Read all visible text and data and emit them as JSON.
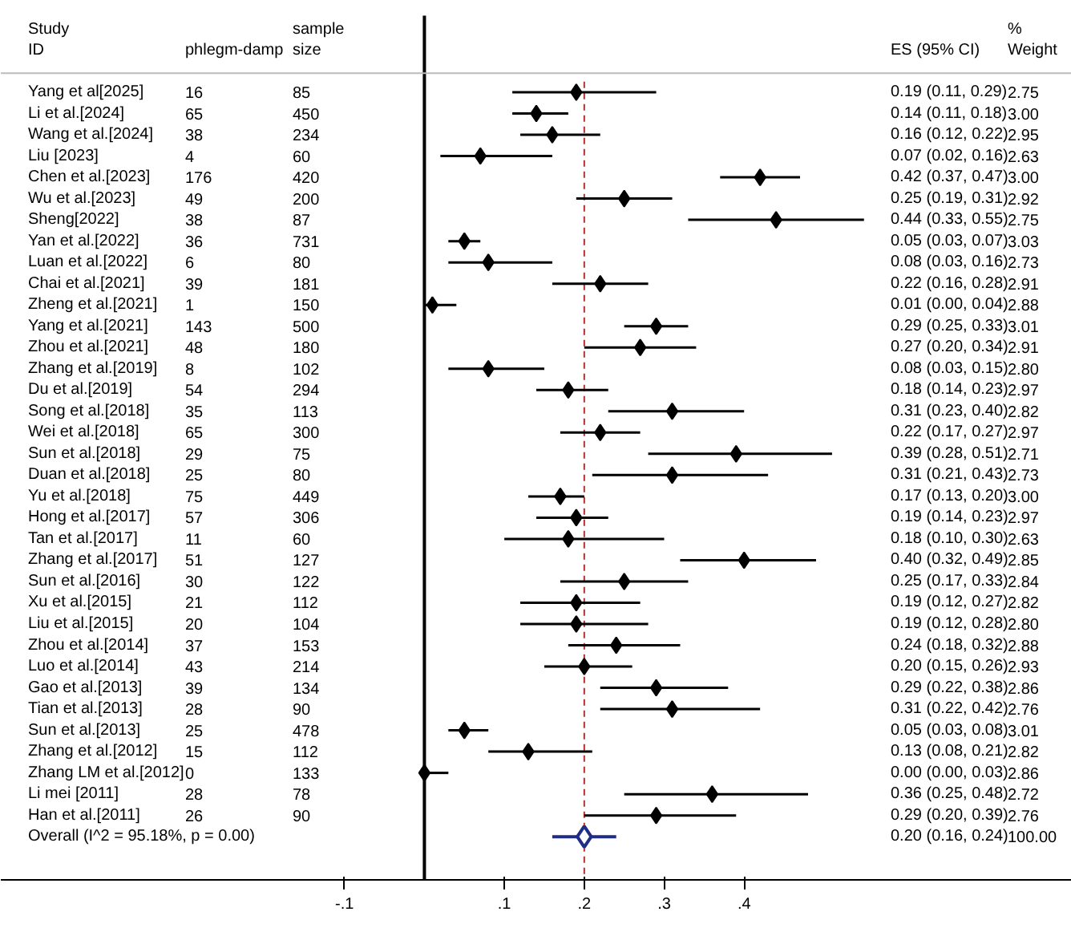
{
  "chart_data": {
    "type": "scatter",
    "orientation": "horizontal",
    "categories": [
      "Yang et al[2025]",
      "Li et al.[2024]",
      "Wang et al.[2024]",
      "Liu [2023]",
      "Chen et al.[2023]",
      "Wu et al.[2023]",
      "Sheng[2022]",
      "Yan et al.[2022]",
      "Luan et al.[2022]",
      "Chai et al.[2021]",
      "Zheng et al.[2021]",
      "Yang et al.[2021]",
      "Zhou et al.[2021]",
      "Zhang et al.[2019]",
      "Du et al.[2019]",
      "Song et al.[2018]",
      "Wei et al.[2018]",
      "Sun et al.[2018]",
      "Duan et al.[2018]",
      "Yu et al.[2018]",
      "Hong et al.[2017]",
      "Tan et al.[2017]",
      "Zhang et al.[2017]",
      "Sun et al.[2016]",
      "Xu et al.[2015]",
      "Liu et al.[2015]",
      "Zhou et al.[2014]",
      "Luo et al.[2014]",
      "Gao et al.[2013]",
      "Tian et al.[2013]",
      "Sun et al.[2013]",
      "Zhang et al.[2012]",
      "Zhang LM et al.[2012]",
      "Li mei [2011]",
      "Han et al.[2011]",
      "Overall  (I^2 = 95.18%, p = 0.00)"
    ],
    "xlim": [
      -0.53,
      0.81
    ],
    "xticks": [
      {
        "value": -0.1,
        "label": "-.1"
      },
      {
        "value": 0.1,
        "label": ".1"
      },
      {
        "value": 0.2,
        "label": ".2"
      },
      {
        "value": 0.3,
        "label": ".3"
      },
      {
        "value": 0.4,
        "label": ".4"
      }
    ],
    "tick_labels": "x",
    "ref_lines": [
      {
        "axis": "x",
        "value": 0,
        "color": "#000000",
        "line_style": "solid"
      },
      {
        "axis": "x",
        "value": 0.2,
        "color": "#b03030",
        "line_style": "dashed"
      }
    ],
    "series": [
      {
        "color": "#000000",
        "marker": "diamond",
        "values": [
          0.19,
          0.14,
          0.16,
          0.07,
          0.42,
          0.25,
          0.44,
          0.05,
          0.08,
          0.22,
          0.01,
          0.29,
          0.27,
          0.08,
          0.18,
          0.31,
          0.22,
          0.39,
          0.31,
          0.17,
          0.19,
          0.18,
          0.4,
          0.25,
          0.19,
          0.19,
          0.24,
          0.2,
          0.29,
          0.31,
          0.05,
          0.13,
          0.0,
          0.36,
          0.29,
          null
        ],
        "errors": [
          [
            0.11,
            0.29
          ],
          [
            0.11,
            0.18
          ],
          [
            0.12,
            0.22
          ],
          [
            0.02,
            0.16
          ],
          [
            0.37,
            0.47
          ],
          [
            0.19,
            0.31
          ],
          [
            0.33,
            0.55
          ],
          [
            0.03,
            0.07
          ],
          [
            0.03,
            0.16
          ],
          [
            0.16,
            0.28
          ],
          [
            0.0,
            0.04
          ],
          [
            0.25,
            0.33
          ],
          [
            0.2,
            0.34
          ],
          [
            0.03,
            0.15
          ],
          [
            0.14,
            0.23
          ],
          [
            0.23,
            0.4
          ],
          [
            0.17,
            0.27
          ],
          [
            0.28,
            0.51
          ],
          [
            0.21,
            0.43
          ],
          [
            0.13,
            0.2
          ],
          [
            0.14,
            0.23
          ],
          [
            0.1,
            0.3
          ],
          [
            0.32,
            0.49
          ],
          [
            0.17,
            0.33
          ],
          [
            0.12,
            0.27
          ],
          [
            0.12,
            0.28
          ],
          [
            0.18,
            0.32
          ],
          [
            0.15,
            0.26
          ],
          [
            0.22,
            0.38
          ],
          [
            0.22,
            0.42
          ],
          [
            0.03,
            0.08
          ],
          [
            0.08,
            0.21
          ],
          [
            0.0,
            0.03
          ],
          [
            0.25,
            0.48
          ],
          [
            0.2,
            0.39
          ],
          null
        ]
      },
      {
        "color": "#1f2d86",
        "marker": "diamond",
        "values": [
          null,
          null,
          null,
          null,
          null,
          null,
          null,
          null,
          null,
          null,
          null,
          null,
          null,
          null,
          null,
          null,
          null,
          null,
          null,
          null,
          null,
          null,
          null,
          null,
          null,
          null,
          null,
          null,
          null,
          null,
          null,
          null,
          null,
          null,
          null,
          0.2
        ],
        "errors": [
          null,
          null,
          null,
          null,
          null,
          null,
          null,
          null,
          null,
          null,
          null,
          null,
          null,
          null,
          null,
          null,
          null,
          null,
          null,
          null,
          null,
          null,
          null,
          null,
          null,
          null,
          null,
          null,
          null,
          null,
          null,
          null,
          null,
          null,
          null,
          [
            0.16,
            0.24
          ]
        ]
      }
    ],
    "annotations": [
      "Study",
      "ID",
      "phlegm-damp",
      "sample",
      "size",
      "ES (95% CI)",
      "%",
      "Weight",
      "16",
      "85",
      "0.19 (0.11, 0.29)",
      "2.75",
      "65",
      "450",
      "0.14 (0.11, 0.18)",
      "3.00",
      "38",
      "234",
      "0.16 (0.12, 0.22)",
      "2.95",
      "4",
      "60",
      "0.07 (0.02, 0.16)",
      "2.63",
      "176",
      "420",
      "0.42 (0.37, 0.47)",
      "3.00",
      "49",
      "200",
      "0.25 (0.19, 0.31)",
      "2.92",
      "38",
      "87",
      "0.44 (0.33, 0.55)",
      "2.75",
      "36",
      "731",
      "0.05 (0.03, 0.07)",
      "3.03",
      "6",
      "80",
      "0.08 (0.03, 0.16)",
      "2.73",
      "39",
      "181",
      "0.22 (0.16, 0.28)",
      "2.91",
      "1",
      "150",
      "0.01 (0.00, 0.04)",
      "2.88",
      "143",
      "500",
      "0.29 (0.25, 0.33)",
      "3.01",
      "48",
      "180",
      "0.27 (0.20, 0.34)",
      "2.91",
      "8",
      "102",
      "0.08 (0.03, 0.15)",
      "2.80",
      "54",
      "294",
      "0.18 (0.14, 0.23)",
      "2.97",
      "35",
      "113",
      "0.31 (0.23, 0.40)",
      "2.82",
      "65",
      "300",
      "0.22 (0.17, 0.27)",
      "2.97",
      "29",
      "75",
      "0.39 (0.28, 0.51)",
      "2.71",
      "25",
      "80",
      "0.31 (0.21, 0.43)",
      "2.73",
      "75",
      "449",
      "0.17 (0.13, 0.20)",
      "3.00",
      "57",
      "306",
      "0.19 (0.14, 0.23)",
      "2.97",
      "11",
      "60",
      "0.18 (0.10, 0.30)",
      "2.63",
      "51",
      "127",
      "0.40 (0.32, 0.49)",
      "2.85",
      "30",
      "122",
      "0.25 (0.17, 0.33)",
      "2.84",
      "21",
      "112",
      "0.19 (0.12, 0.27)",
      "2.82",
      "20",
      "104",
      "0.19 (0.12, 0.28)",
      "2.80",
      "37",
      "153",
      "0.24 (0.18, 0.32)",
      "2.88",
      "43",
      "214",
      "0.20 (0.15, 0.26)",
      "2.93",
      "39",
      "134",
      "0.29 (0.22, 0.38)",
      "2.86",
      "28",
      "90",
      "0.31 (0.22, 0.42)",
      "2.76",
      "25",
      "478",
      "0.05 (0.03, 0.08)",
      "3.01",
      "15",
      "112",
      "0.13 (0.08, 0.21)",
      "2.82",
      "0",
      "133",
      "0.00 (0.00, 0.03)",
      "2.86",
      "28",
      "78",
      "0.36 (0.25, 0.48)",
      "2.72",
      "26",
      "90",
      "0.29 (0.20, 0.39)",
      "2.76",
      "0.20 (0.16, 0.24)",
      "100.00"
    ]
  }
}
